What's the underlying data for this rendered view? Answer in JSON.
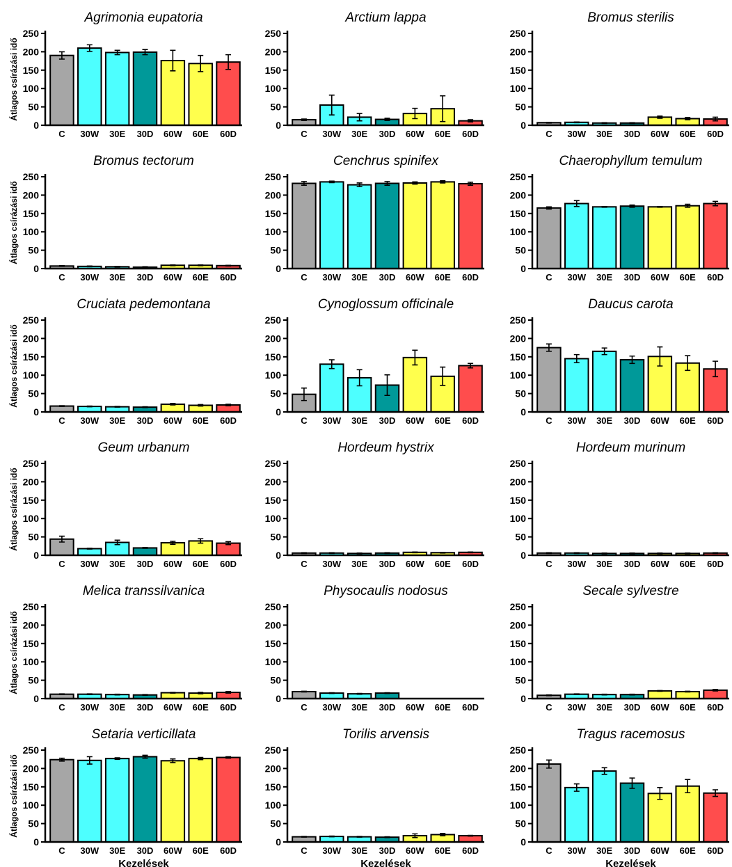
{
  "colors": {
    "C": "#a6a6a6",
    "30W": "#4dffff",
    "30E": "#4dffff",
    "30D": "#009999",
    "60W": "#ffff4d",
    "60E": "#ffff4d",
    "60D": "#ff4d4d"
  },
  "chart_data": [
    {
      "type": "bar",
      "title": "Agrimonia eupatoria",
      "ylabel": "Átlagos csírázási idő",
      "xlabel": "",
      "ylim": [
        0,
        250
      ],
      "yticks": [
        0,
        50,
        100,
        150,
        200,
        250
      ],
      "categories": [
        "C",
        "30W",
        "30E",
        "30D",
        "60W",
        "60E",
        "60D"
      ],
      "values": [
        190,
        210,
        198,
        199,
        176,
        168,
        172
      ],
      "errors": [
        10,
        9,
        6,
        7,
        28,
        22,
        20
      ]
    },
    {
      "type": "bar",
      "title": "Arctium lappa",
      "ylabel": "",
      "xlabel": "",
      "ylim": [
        0,
        250
      ],
      "yticks": [
        0,
        50,
        100,
        150,
        200,
        250
      ],
      "categories": [
        "C",
        "30W",
        "30E",
        "30D",
        "60W",
        "60E",
        "60D"
      ],
      "values": [
        15,
        55,
        22,
        16,
        32,
        45,
        12
      ],
      "errors": [
        2,
        27,
        10,
        3,
        14,
        35,
        3
      ]
    },
    {
      "type": "bar",
      "title": "Bromus sterilis",
      "ylabel": "",
      "xlabel": "",
      "ylim": [
        0,
        250
      ],
      "yticks": [
        0,
        50,
        100,
        150,
        200,
        250
      ],
      "categories": [
        "C",
        "30W",
        "30E",
        "30D",
        "60W",
        "60E",
        "60D"
      ],
      "values": [
        7,
        8,
        6,
        6,
        22,
        18,
        17
      ],
      "errors": [
        1,
        1,
        1,
        1,
        3,
        3,
        5
      ]
    },
    {
      "type": "bar",
      "title": "Bromus tectorum",
      "ylabel": "Átlagos csírázási idő",
      "xlabel": "",
      "ylim": [
        0,
        250
      ],
      "yticks": [
        0,
        50,
        100,
        150,
        200,
        250
      ],
      "categories": [
        "C",
        "30W",
        "30E",
        "30D",
        "60W",
        "60E",
        "60D"
      ],
      "values": [
        7,
        6,
        5,
        4,
        9,
        9,
        8
      ],
      "errors": [
        1,
        1,
        1,
        1,
        1,
        1,
        1
      ]
    },
    {
      "type": "bar",
      "title": "Cenchrus spinifex",
      "ylabel": "",
      "xlabel": "",
      "ylim": [
        0,
        250
      ],
      "yticks": [
        0,
        50,
        100,
        150,
        200,
        250
      ],
      "categories": [
        "C",
        "30W",
        "30E",
        "30D",
        "60W",
        "60E",
        "60D"
      ],
      "values": [
        232,
        236,
        228,
        232,
        233,
        236,
        231
      ],
      "errors": [
        5,
        2,
        5,
        5,
        3,
        3,
        4
      ]
    },
    {
      "type": "bar",
      "title": "Chaerophyllum temulum",
      "ylabel": "",
      "xlabel": "",
      "ylim": [
        0,
        250
      ],
      "yticks": [
        0,
        50,
        100,
        150,
        200,
        250
      ],
      "categories": [
        "C",
        "30W",
        "30E",
        "30D",
        "60W",
        "60E",
        "60D"
      ],
      "values": [
        165,
        177,
        168,
        170,
        168,
        171,
        177
      ],
      "errors": [
        3,
        8,
        1,
        3,
        1,
        4,
        6
      ]
    },
    {
      "type": "bar",
      "title": "Cruciata pedemontana",
      "ylabel": "Átlagos csírázási idő",
      "xlabel": "",
      "ylim": [
        0,
        250
      ],
      "yticks": [
        0,
        50,
        100,
        150,
        200,
        250
      ],
      "categories": [
        "C",
        "30W",
        "30E",
        "30D",
        "60W",
        "60E",
        "60D"
      ],
      "values": [
        16,
        15,
        14,
        13,
        21,
        18,
        19
      ],
      "errors": [
        1,
        1,
        1,
        1,
        2,
        2,
        2
      ]
    },
    {
      "type": "bar",
      "title": "Cynoglossum officinale",
      "ylabel": "",
      "xlabel": "",
      "ylim": [
        0,
        250
      ],
      "yticks": [
        0,
        50,
        100,
        150,
        200,
        250
      ],
      "categories": [
        "C",
        "30W",
        "30E",
        "30D",
        "60W",
        "60E",
        "60D"
      ],
      "values": [
        48,
        130,
        93,
        73,
        148,
        97,
        126
      ],
      "errors": [
        17,
        12,
        22,
        28,
        20,
        25,
        6
      ]
    },
    {
      "type": "bar",
      "title": "Daucus carota",
      "ylabel": "",
      "xlabel": "",
      "ylim": [
        0,
        250
      ],
      "yticks": [
        0,
        50,
        100,
        150,
        200,
        250
      ],
      "categories": [
        "C",
        "30W",
        "30E",
        "30D",
        "60W",
        "60E",
        "60D"
      ],
      "values": [
        175,
        145,
        165,
        142,
        151,
        133,
        117
      ],
      "errors": [
        10,
        11,
        9,
        10,
        26,
        20,
        21
      ]
    },
    {
      "type": "bar",
      "title": "Geum urbanum",
      "ylabel": "Átlagos csírázási idő",
      "xlabel": "",
      "ylim": [
        0,
        250
      ],
      "yticks": [
        0,
        50,
        100,
        150,
        200,
        250
      ],
      "categories": [
        "C",
        "30W",
        "30E",
        "30D",
        "60W",
        "60E",
        "60D"
      ],
      "values": [
        44,
        18,
        35,
        20,
        34,
        39,
        33
      ],
      "errors": [
        8,
        1,
        6,
        1,
        4,
        6,
        4
      ]
    },
    {
      "type": "bar",
      "title": "Hordeum hystrix",
      "ylabel": "",
      "xlabel": "",
      "ylim": [
        0,
        250
      ],
      "yticks": [
        0,
        50,
        100,
        150,
        200,
        250
      ],
      "categories": [
        "C",
        "30W",
        "30E",
        "30D",
        "60W",
        "60E",
        "60D"
      ],
      "values": [
        6,
        6,
        5,
        6,
        8,
        7,
        8
      ],
      "errors": [
        1,
        1,
        1,
        1,
        1,
        1,
        1
      ]
    },
    {
      "type": "bar",
      "title": "Hordeum murinum",
      "ylabel": "",
      "xlabel": "",
      "ylim": [
        0,
        250
      ],
      "yticks": [
        0,
        50,
        100,
        150,
        200,
        250
      ],
      "categories": [
        "C",
        "30W",
        "30E",
        "30D",
        "60W",
        "60E",
        "60D"
      ],
      "values": [
        6,
        6,
        5,
        5,
        5,
        5,
        6
      ],
      "errors": [
        1,
        1,
        1,
        1,
        1,
        1,
        1
      ]
    },
    {
      "type": "bar",
      "title": "Melica transsilvanica",
      "ylabel": "Átlagos csírázási idő",
      "xlabel": "",
      "ylim": [
        0,
        250
      ],
      "yticks": [
        0,
        50,
        100,
        150,
        200,
        250
      ],
      "categories": [
        "C",
        "30W",
        "30E",
        "30D",
        "60W",
        "60E",
        "60D"
      ],
      "values": [
        12,
        12,
        11,
        10,
        16,
        15,
        17
      ],
      "errors": [
        1,
        1,
        1,
        1,
        1,
        2,
        2
      ]
    },
    {
      "type": "bar",
      "title": "Physocaulis nodosus",
      "ylabel": "",
      "xlabel": "",
      "ylim": [
        0,
        250
      ],
      "yticks": [
        0,
        50,
        100,
        150,
        200,
        250
      ],
      "categories": [
        "C",
        "30W",
        "30E",
        "30D",
        "60W",
        "60E",
        "60D"
      ],
      "values": [
        19,
        15,
        13,
        15,
        0,
        0,
        0
      ],
      "errors": [
        1,
        1,
        1,
        1,
        0,
        0,
        0
      ]
    },
    {
      "type": "bar",
      "title": "Secale sylvestre",
      "ylabel": "",
      "xlabel": "",
      "ylim": [
        0,
        250
      ],
      "yticks": [
        0,
        50,
        100,
        150,
        200,
        250
      ],
      "categories": [
        "C",
        "30W",
        "30E",
        "30D",
        "60W",
        "60E",
        "60D"
      ],
      "values": [
        9,
        12,
        11,
        11,
        21,
        19,
        23
      ],
      "errors": [
        1,
        1,
        1,
        1,
        1,
        1,
        2
      ]
    },
    {
      "type": "bar",
      "title": "Setaria verticillata",
      "ylabel": "Átlagos csírázási idő",
      "xlabel": "Kezelések",
      "ylim": [
        0,
        250
      ],
      "yticks": [
        0,
        50,
        100,
        150,
        200,
        250
      ],
      "categories": [
        "C",
        "30W",
        "30E",
        "30D",
        "60W",
        "60E",
        "60D"
      ],
      "values": [
        224,
        222,
        227,
        232,
        221,
        227,
        230
      ],
      "errors": [
        4,
        10,
        2,
        4,
        5,
        3,
        2
      ]
    },
    {
      "type": "bar",
      "title": "Torilis arvensis",
      "ylabel": "",
      "xlabel": "Kezelések",
      "ylim": [
        0,
        250
      ],
      "yticks": [
        0,
        50,
        100,
        150,
        200,
        250
      ],
      "categories": [
        "C",
        "30W",
        "30E",
        "30D",
        "60W",
        "60E",
        "60D"
      ],
      "values": [
        14,
        15,
        14,
        13,
        17,
        20,
        17
      ],
      "errors": [
        1,
        1,
        1,
        1,
        5,
        3,
        1
      ]
    },
    {
      "type": "bar",
      "title": "Tragus racemosus",
      "ylabel": "",
      "xlabel": "Kezelések",
      "ylim": [
        0,
        250
      ],
      "yticks": [
        0,
        50,
        100,
        150,
        200,
        250
      ],
      "categories": [
        "C",
        "30W",
        "30E",
        "30D",
        "60W",
        "60E",
        "60D"
      ],
      "values": [
        212,
        148,
        193,
        160,
        132,
        152,
        133
      ],
      "errors": [
        11,
        10,
        9,
        14,
        16,
        18,
        9
      ]
    }
  ]
}
